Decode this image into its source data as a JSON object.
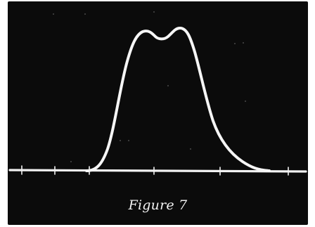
{
  "caption": "Figure 7",
  "colors": {
    "screen": "#0b0b0b",
    "trace": "#f4f4f4",
    "graticule": "#9a9a9a"
  }
}
